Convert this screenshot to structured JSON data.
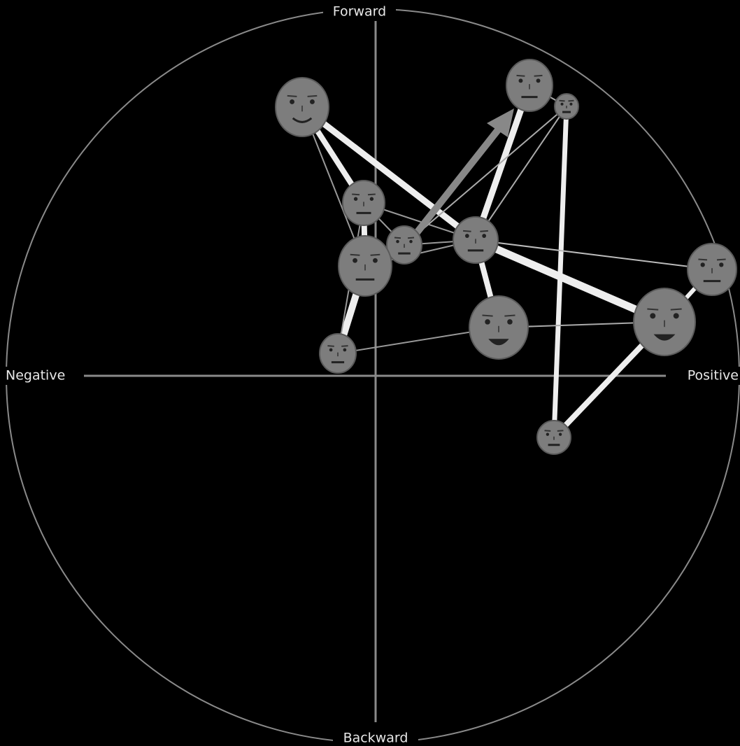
{
  "axis_labels": {
    "forward": "Forward",
    "backward": "Backward",
    "negative": "Negative",
    "positive": "Positive"
  }
}
